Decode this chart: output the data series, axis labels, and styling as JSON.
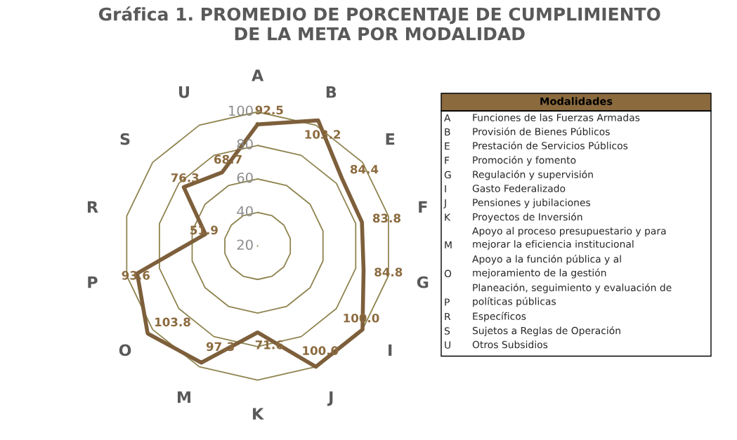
{
  "chart_data": {
    "type": "radar",
    "title": "Gráfica 1. PROMEDIO DE PORCENTAJE DE CUMPLIMIENTO\nDE LA META POR MODALIDAD",
    "categories": [
      "A",
      "B",
      "E",
      "F",
      "G",
      "I",
      "J",
      "K",
      "M",
      "O",
      "P",
      "R",
      "S",
      "U"
    ],
    "series": [
      {
        "color": "#7d5f3b",
        "values": [
          92.5,
          103.2,
          84.4,
          83.8,
          84.8,
          100.0,
          100.0,
          71.6,
          97.3,
          103.8,
          93.6,
          51.9,
          76.3,
          68.7
        ],
        "value_labels": [
          "92.5",
          "103.2",
          "84.4",
          "83.8",
          "84.8",
          "100.0",
          "100.0",
          "71.6",
          "97.3",
          "103.8",
          "93.6",
          "51.9",
          "76.3",
          "68.7"
        ]
      }
    ],
    "ylim": [
      20,
      105
    ],
    "yticks": [
      20,
      40,
      60,
      80,
      100
    ],
    "grid": true,
    "legend_title": "Modalidades",
    "annotations": [
      "Funciones de las Fuerzas Armadas",
      "Provisión de Bienes Públicos",
      "Prestación de Servicios Públicos",
      "Promoción y fomento",
      "Regulación y supervisión",
      "Gasto Federalizado",
      "Pensiones y jubilaciones",
      "Proyectos de Inversión",
      "Apoyo al proceso presupuestario y para\nmejorar la eficiencia institucional",
      "Apoyo a la función pública y al\nmejoramiento de la gestión",
      "Planeación, seguimiento y evaluación de\npolíticas públicas",
      "Específicos",
      "Sujetos a Reglas de Operación",
      "Otros Subsidios"
    ]
  }
}
